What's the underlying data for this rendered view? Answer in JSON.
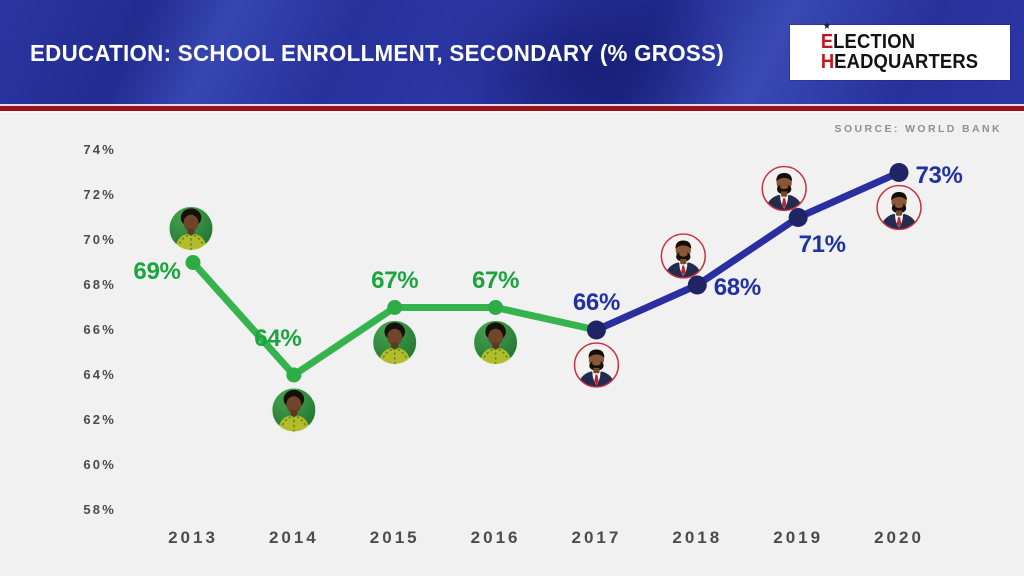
{
  "header": {
    "title": "EDUCATION: SCHOOL ENROLLMENT, SECONDARY (% GROSS)",
    "logo": {
      "star": "★",
      "line1_initial": "E",
      "line1_rest": "LECTION",
      "line2_initial": "H",
      "line2_rest": "EADQUARTERS"
    }
  },
  "source_label": "SOURCE: WORLD BANK",
  "chart_data": {
    "type": "line",
    "title": "EDUCATION: SCHOOL ENROLLMENT, SECONDARY (% GROSS)",
    "source": "SOURCE: WORLD BANK",
    "x": [
      "2013",
      "2014",
      "2015",
      "2016",
      "2017",
      "2018",
      "2019",
      "2020"
    ],
    "yticks": [
      "74%",
      "72%",
      "70%",
      "68%",
      "66%",
      "64%",
      "62%",
      "60%",
      "58%"
    ],
    "ylim": [
      58,
      74
    ],
    "grid": false,
    "legend": "none",
    "series": [
      {
        "name": "green-period-2013-2017",
        "color": "#35b44d",
        "x": [
          "2013",
          "2014",
          "2015",
          "2016",
          "2017"
        ],
        "values": [
          69,
          64,
          67,
          67,
          66
        ]
      },
      {
        "name": "blue-period-2017-2020",
        "color": "#2b2e9e",
        "x": [
          "2017",
          "2018",
          "2019",
          "2020"
        ],
        "values": [
          66,
          68,
          71,
          73
        ]
      }
    ],
    "groups": {
      "green": {
        "line_color": "#35b44d",
        "dot_color": "#2dab44",
        "label_color": "#1aa43c",
        "avatar": "woman-green-avatar"
      },
      "blue": {
        "line_color": "#2b2e9e",
        "dot_color": "#1f2464",
        "label_color": "#2031a6",
        "avatar": "man-red-ring-avatar"
      }
    },
    "points": [
      {
        "year": "2013",
        "value": 69,
        "label": "69%",
        "group": "green",
        "label_pos": "left",
        "avatar_pos": "above"
      },
      {
        "year": "2014",
        "value": 64,
        "label": "64%",
        "group": "green",
        "label_pos": "above-left",
        "avatar_pos": "below"
      },
      {
        "year": "2015",
        "value": 67,
        "label": "67%",
        "group": "green",
        "label_pos": "above",
        "avatar_pos": "below"
      },
      {
        "year": "2016",
        "value": 67,
        "label": "67%",
        "group": "green",
        "label_pos": "above",
        "avatar_pos": "below"
      },
      {
        "year": "2017",
        "value": 66,
        "label": "66%",
        "group": "blue",
        "label_pos": "above",
        "avatar_pos": "below"
      },
      {
        "year": "2018",
        "value": 68,
        "label": "68%",
        "group": "blue",
        "label_pos": "right",
        "avatar_pos": "above-left"
      },
      {
        "year": "2019",
        "value": 71,
        "label": "71%",
        "group": "blue",
        "label_pos": "below-right",
        "avatar_pos": "above-left"
      },
      {
        "year": "2020",
        "value": 73,
        "label": "73%",
        "group": "blue",
        "label_pos": "right",
        "avatar_pos": "below"
      }
    ],
    "segments": [
      {
        "name": "green-line",
        "group": "green",
        "point_indexes": [
          0,
          1,
          2,
          3,
          4
        ]
      },
      {
        "name": "blue-line",
        "group": "blue",
        "point_indexes": [
          4,
          5,
          6,
          7
        ]
      }
    ]
  }
}
